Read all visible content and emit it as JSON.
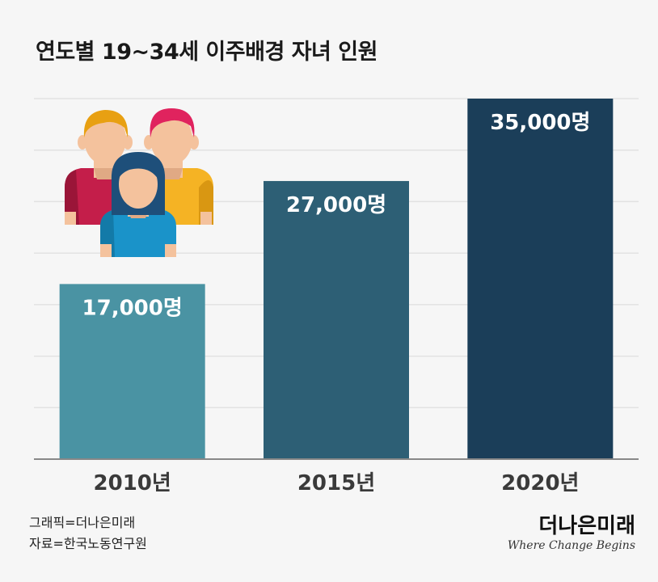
{
  "title": "연도별 19~34세 이주배경 자녀 인원",
  "chart_data": {
    "type": "bar",
    "categories": [
      "2010년",
      "2015년",
      "2020년"
    ],
    "values": [
      17000,
      27000,
      35000
    ],
    "value_labels": [
      "17,000명",
      "27,000명",
      "35,000명"
    ],
    "colors": [
      "#4a93a3",
      "#2d5f75",
      "#1b3e59"
    ],
    "ylim": [
      0,
      35000
    ],
    "grid": true,
    "legend": "none"
  },
  "credits": {
    "graphic": "그래픽=더나은미래",
    "source": "자료=한국노동연구원"
  },
  "brand": {
    "name": "더나은미래",
    "tagline": "Where Change Begins"
  },
  "illustration": {
    "icon": "people-group-icon"
  }
}
